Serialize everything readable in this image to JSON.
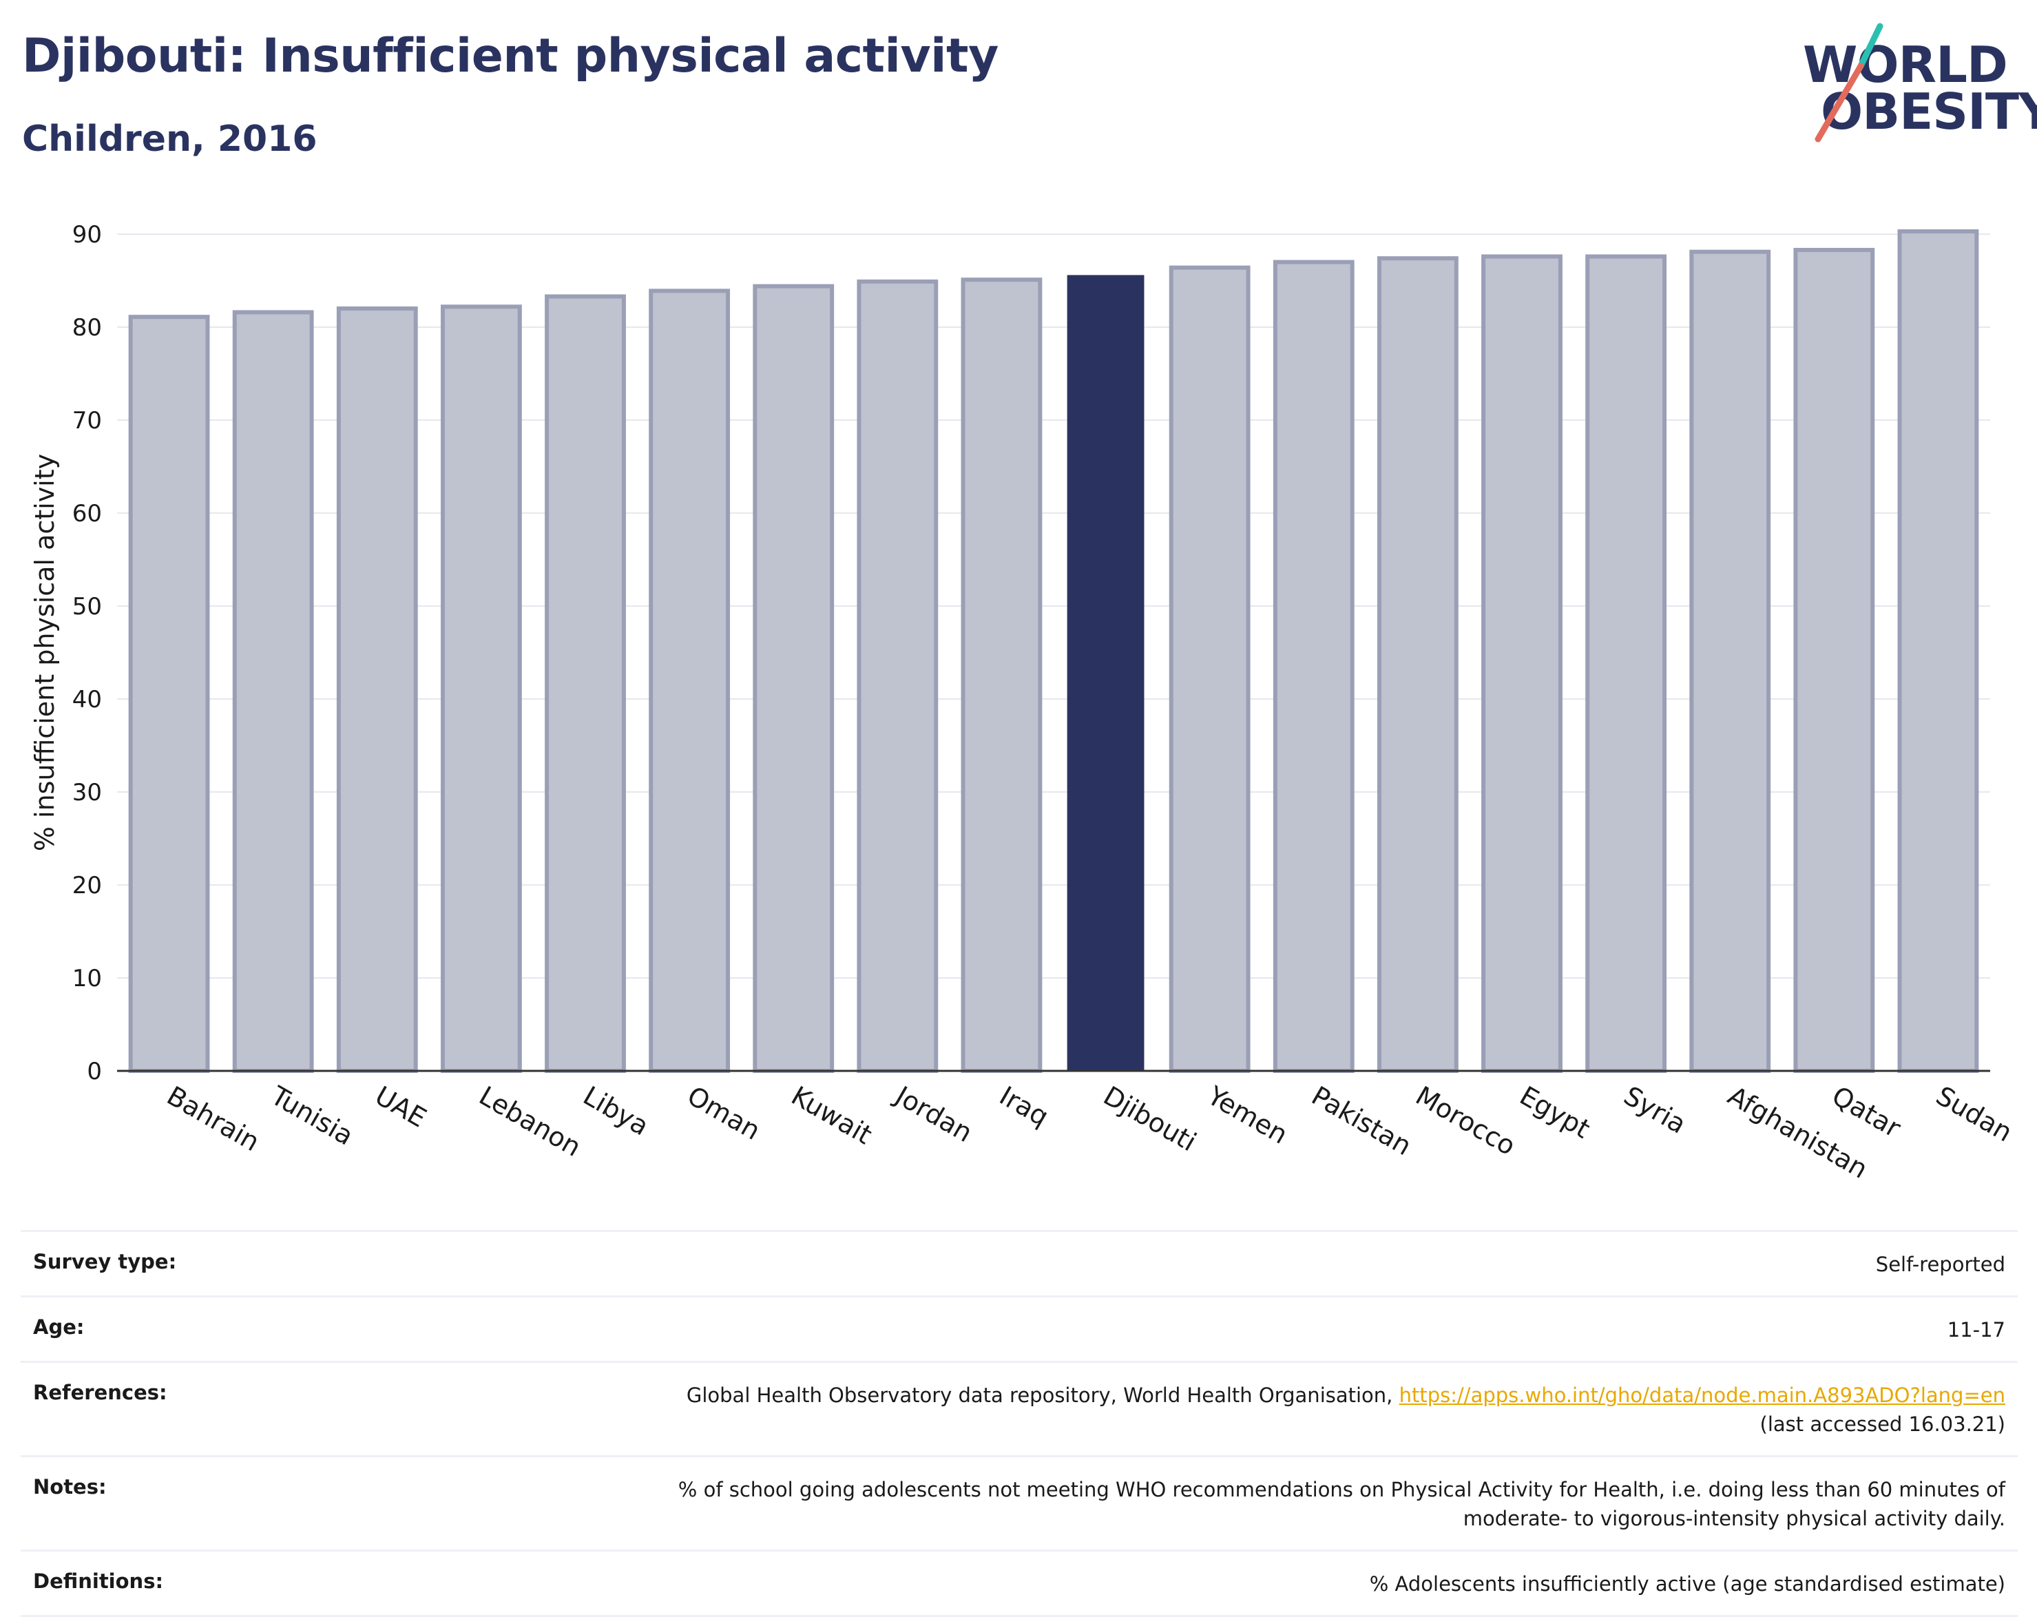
{
  "header": {
    "title": "Djibouti: Insufficient physical activity",
    "subtitle": "Children, 2016"
  },
  "logo": {
    "line1": "WORLD",
    "line2": "OBESITY"
  },
  "colors": {
    "highlight": "#2a3360",
    "bar_fill": "#bfc2cf",
    "bar_stroke": "#9a9fb6",
    "accent_teal": "#2bbfb0",
    "accent_red": "#e26b5c",
    "link": "#e8a800"
  },
  "chart_data": {
    "type": "bar",
    "ylabel": "% insufficient physical activity",
    "xlabel": "",
    "ylim": [
      0,
      90
    ],
    "yticks": [
      0,
      10,
      20,
      30,
      40,
      50,
      60,
      70,
      80,
      90
    ],
    "grid": true,
    "highlight": "Djibouti",
    "categories": [
      "Bahrain",
      "Tunisia",
      "UAE",
      "Lebanon",
      "Libya",
      "Oman",
      "Kuwait",
      "Jordan",
      "Iraq",
      "Djibouti",
      "Yemen",
      "Pakistan",
      "Morocco",
      "Egypt",
      "Syria",
      "Afghanistan",
      "Qatar",
      "Sudan"
    ],
    "values": [
      81.1,
      81.6,
      82.0,
      82.2,
      83.3,
      83.9,
      84.4,
      84.9,
      85.1,
      85.6,
      86.4,
      87.0,
      87.4,
      87.6,
      87.6,
      88.1,
      88.3,
      90.3
    ]
  },
  "info": {
    "survey_label": "Survey type:",
    "survey_value": "Self-reported",
    "age_label": "Age:",
    "age_value": "11-17",
    "references_label": "References:",
    "references_text": "Global Health Observatory data repository, World Health Organisation, ",
    "references_link": "https://apps.who.int/gho/data/node.main.A893ADO?lang=en",
    "references_accessed": "(last accessed 16.03.21)",
    "notes_label": "Notes:",
    "notes_line1": "% of school going adolescents not meeting WHO recommendations on Physical Activity for Health, i.e. doing less than 60 minutes of",
    "notes_line2": "moderate- to vigorous-intensity physical activity daily.",
    "definitions_label": "Definitions:",
    "definitions_value": "% Adolescents insufficiently active (age standardised estimate)"
  }
}
